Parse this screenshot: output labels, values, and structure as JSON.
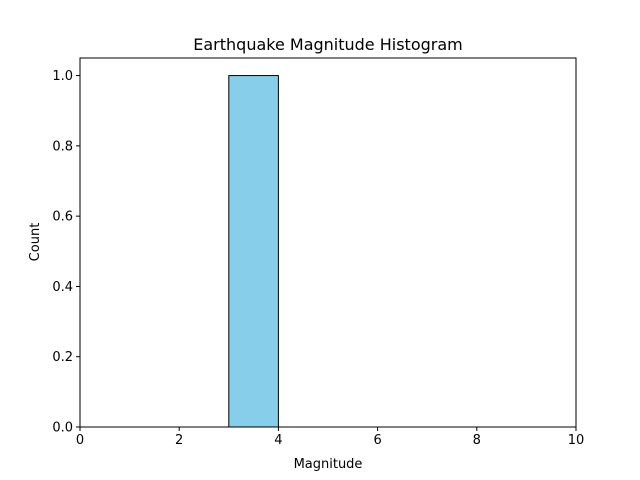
{
  "chart_data": {
    "type": "bar",
    "title": "Earthquake Magnitude Histogram",
    "xlabel": "Magnitude",
    "ylabel": "Count",
    "xlim": [
      0,
      10
    ],
    "ylim": [
      0,
      1.05
    ],
    "xticks": [
      0,
      2,
      4,
      6,
      8,
      10
    ],
    "xtick_labels": [
      "0",
      "2",
      "4",
      "6",
      "8",
      "10"
    ],
    "yticks": [
      0.0,
      0.2,
      0.4,
      0.6,
      0.8,
      1.0
    ],
    "ytick_labels": [
      "0.0",
      "0.2",
      "0.4",
      "0.6",
      "0.8",
      "1.0"
    ],
    "bins": [
      {
        "start": 3,
        "end": 4,
        "count": 1
      }
    ],
    "bar_color": "#87ceeb",
    "edge_color": "#000000",
    "grid": false,
    "legend": "none"
  }
}
